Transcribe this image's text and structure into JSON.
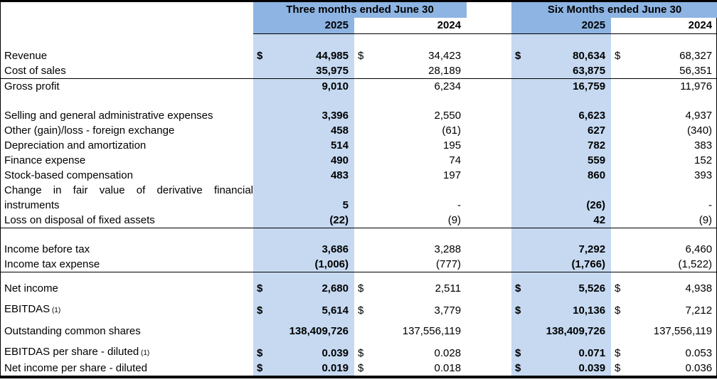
{
  "colors": {
    "header_blue": "#8DB4E2",
    "highlight_blue": "#C6D9F1",
    "rule_black": "#000000"
  },
  "currency_symbol": "$",
  "header": {
    "groups": [
      {
        "title": "Three months ended June 30",
        "year_current": "2025",
        "year_prior": "2024"
      },
      {
        "title": "Six Months ended June 30",
        "year_current": "2025",
        "year_prior": "2024"
      }
    ]
  },
  "rows": [
    {
      "type": "spacer",
      "cls": "sp"
    },
    {
      "label": "Revenue",
      "dollar": true,
      "values": [
        "44,985",
        "34,423",
        "80,634",
        "68,327"
      ]
    },
    {
      "label": "Cost of sales",
      "values": [
        "35,975",
        "28,189",
        "63,875",
        "56,351"
      ]
    },
    {
      "label": "Gross profit",
      "cls": "rule",
      "values": [
        "9,010",
        "6,234",
        "16,759",
        "11,976"
      ]
    },
    {
      "type": "spacer",
      "cls": "sp"
    },
    {
      "label": "Selling and general administrative expenses",
      "values": [
        "3,396",
        "2,550",
        "6,623",
        "4,937"
      ]
    },
    {
      "label": "Other (gain)/loss - foreign exchange",
      "values": [
        "458",
        "(61)",
        "627",
        "(340)"
      ]
    },
    {
      "label": "Depreciation and amortization",
      "values": [
        "514",
        "195",
        "782",
        "383"
      ]
    },
    {
      "label": "Finance expense",
      "values": [
        "490",
        "74",
        "559",
        "152"
      ]
    },
    {
      "label": "Stock-based compensation",
      "values": [
        "483",
        "197",
        "860",
        "393"
      ]
    },
    {
      "label": "Change in fair value of derivative financial instruments",
      "cls": "wrap",
      "values": [
        "5",
        "-",
        "(26)",
        "-"
      ]
    },
    {
      "label": "Loss on disposal of fixed assets",
      "values": [
        "(22)",
        "(9)",
        "42",
        "(9)"
      ]
    },
    {
      "type": "spacer",
      "cls": "sp rule"
    },
    {
      "label": "Income before tax",
      "values": [
        "3,686",
        "3,288",
        "7,292",
        "6,460"
      ]
    },
    {
      "label": "Income tax expense",
      "values": [
        "(1,006)",
        "(777)",
        "(1,766)",
        "(1,522)"
      ]
    },
    {
      "type": "spacer",
      "cls": "sp-sm rule"
    },
    {
      "label": "Net income",
      "dollar": true,
      "values": [
        "2,680",
        "2,511",
        "5,526",
        "4,938"
      ]
    },
    {
      "type": "spacer",
      "cls": "sp-xs"
    },
    {
      "label": "EBITDAS",
      "note": "(1)",
      "dollar": true,
      "values": [
        "5,614",
        "3,779",
        "10,136",
        "7,212"
      ]
    },
    {
      "type": "spacer",
      "cls": "sp-xs"
    },
    {
      "label": "Outstanding common shares",
      "values": [
        "138,409,726",
        "137,556,119",
        "138,409,726",
        "137,556,119"
      ]
    },
    {
      "type": "spacer",
      "cls": "sp-xs"
    },
    {
      "label": "EBITDAS per share - diluted",
      "note": "(1)",
      "dollar": true,
      "values": [
        "0.039",
        "0.028",
        "0.071",
        "0.053"
      ]
    },
    {
      "label": "Net income per share - diluted",
      "dollar": true,
      "values": [
        "0.019",
        "0.018",
        "0.039",
        "0.036"
      ]
    }
  ]
}
